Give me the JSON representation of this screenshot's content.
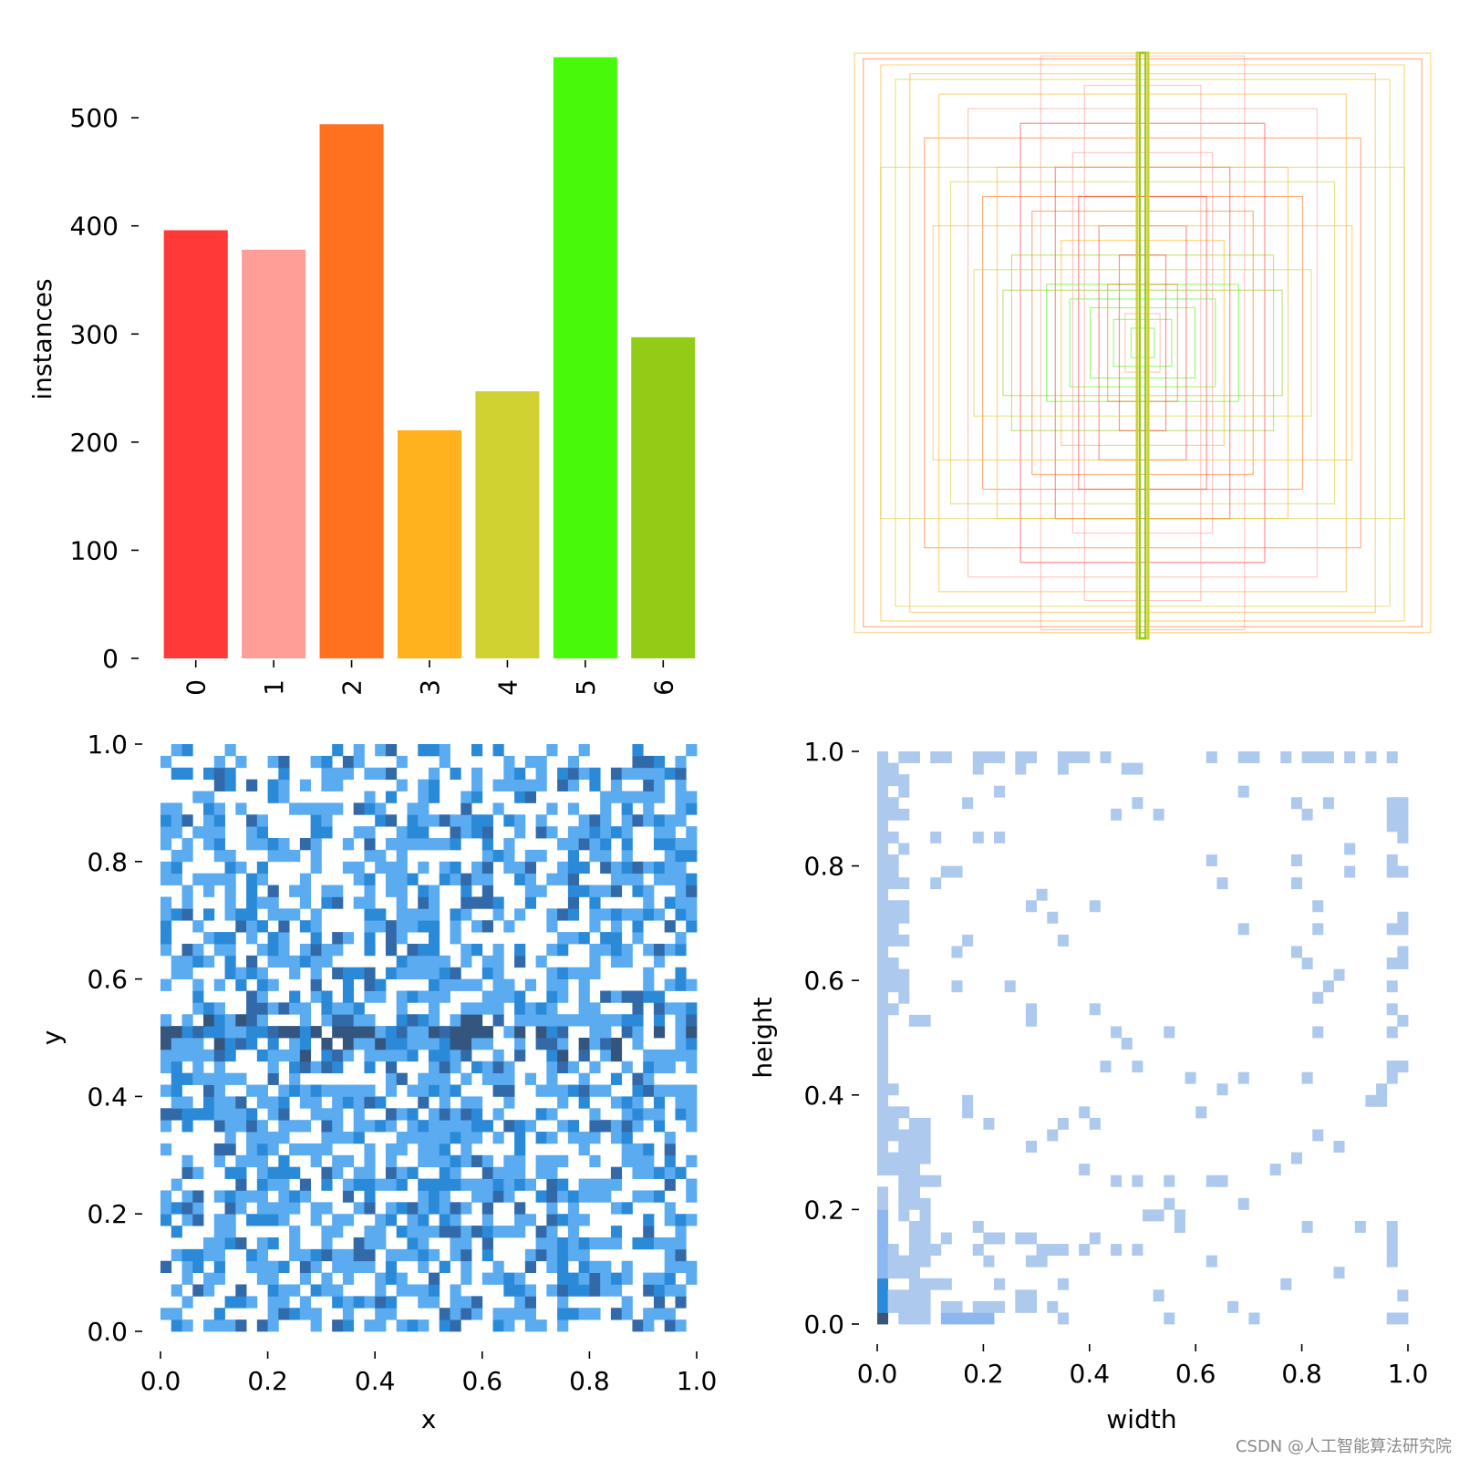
{
  "chart_data": [
    {
      "type": "bar",
      "categories": [
        "0",
        "1",
        "2",
        "3",
        "4",
        "5",
        "6"
      ],
      "values": [
        396,
        378,
        494,
        211,
        247,
        556,
        297
      ],
      "colors": [
        "#ff3838",
        "#ff9d97",
        "#ff701f",
        "#ffb21d",
        "#cfd231",
        "#48f90a",
        "#92cc17"
      ],
      "title": "",
      "xlabel": "",
      "ylabel": "instances",
      "ylim": [
        0,
        560
      ],
      "yticks": [
        0,
        100,
        200,
        300,
        400,
        500
      ],
      "grid": false
    },
    {
      "type": "other",
      "description_key": "overlaid centered box outlines, no axes",
      "boxes": [
        [
          0.99,
          0.99,
          "#ffb21d"
        ],
        [
          0.96,
          0.97,
          "#ff701f"
        ],
        [
          0.9,
          0.95,
          "#ffb21d"
        ],
        [
          0.85,
          0.9,
          "#cfd231"
        ],
        [
          0.8,
          0.92,
          "#ffb21d"
        ],
        [
          0.75,
          0.7,
          "#ff701f"
        ],
        [
          0.7,
          0.85,
          "#ffb21d"
        ],
        [
          0.66,
          0.55,
          "#cfd231"
        ],
        [
          0.6,
          0.8,
          "#ff9d97"
        ],
        [
          0.55,
          0.5,
          "#ff701f"
        ],
        [
          0.5,
          0.6,
          "#ffb21d"
        ],
        [
          0.45,
          0.3,
          "#92cc17"
        ],
        [
          0.42,
          0.75,
          "#ff3838"
        ],
        [
          0.38,
          0.45,
          "#ff701f"
        ],
        [
          0.35,
          0.98,
          "#ff9d97"
        ],
        [
          0.33,
          0.2,
          "#48f90a"
        ],
        [
          0.3,
          0.6,
          "#ff3838"
        ],
        [
          0.28,
          0.35,
          "#ffb21d"
        ],
        [
          0.25,
          0.15,
          "#48f90a"
        ],
        [
          0.22,
          0.5,
          "#ff3838"
        ],
        [
          0.2,
          0.88,
          "#ff9d97"
        ],
        [
          0.18,
          0.12,
          "#48f90a"
        ],
        [
          0.15,
          0.4,
          "#ff3838"
        ],
        [
          0.12,
          0.2,
          "#ff701f"
        ],
        [
          0.1,
          0.08,
          "#48f90a"
        ],
        [
          0.08,
          0.3,
          "#ff3838"
        ],
        [
          0.06,
          0.1,
          "#ff9d97"
        ],
        [
          0.04,
          0.05,
          "#48f90a"
        ],
        [
          0.02,
          0.99,
          "#cfd231"
        ],
        [
          0.01,
          0.99,
          "#92cc17"
        ],
        [
          0.58,
          0.25,
          "#cfd231"
        ],
        [
          0.48,
          0.18,
          "#92cc17"
        ],
        [
          0.24,
          0.65,
          "#ff9d97"
        ],
        [
          0.9,
          0.6,
          "#cfd231"
        ],
        [
          0.72,
          0.4,
          "#ffb21d"
        ]
      ],
      "grid": false
    },
    {
      "type": "heatmap",
      "xlabel": "x",
      "ylabel": "y",
      "xlim": [
        0,
        1
      ],
      "ylim": [
        0,
        1
      ],
      "xticks": [
        "0.0",
        "0.2",
        "0.4",
        "0.6",
        "0.8",
        "1.0"
      ],
      "yticks": [
        "0.0",
        "0.2",
        "0.4",
        "0.6",
        "0.8",
        "1.0"
      ],
      "bins": 50,
      "distribution": "uniform random, denser near center lines x≈0.5 and y≈0.5",
      "palette": [
        "#ffffff",
        "#5aabf0",
        "#2a8ad8",
        "#3269a8",
        "#34557e"
      ],
      "grid": false
    },
    {
      "type": "heatmap",
      "xlabel": "width",
      "ylabel": "height",
      "xlim": [
        0,
        1
      ],
      "ylim": [
        0,
        1
      ],
      "xticks": [
        "0.0",
        "0.2",
        "0.4",
        "0.6",
        "0.8",
        "1.0"
      ],
      "yticks": [
        "0.0",
        "0.2",
        "0.4",
        "0.6",
        "0.8",
        "1.0"
      ],
      "bins": 50,
      "distribution": "concentrated near width≈0 and height≈0, sparse elsewhere",
      "palette": [
        "#ffffff",
        "#aec9ee",
        "#8cb7ef",
        "#5aa0ea",
        "#2a8ad8",
        "#3a5577"
      ],
      "grid": false
    }
  ],
  "watermark": "CSDN @人工智能算法研究院"
}
